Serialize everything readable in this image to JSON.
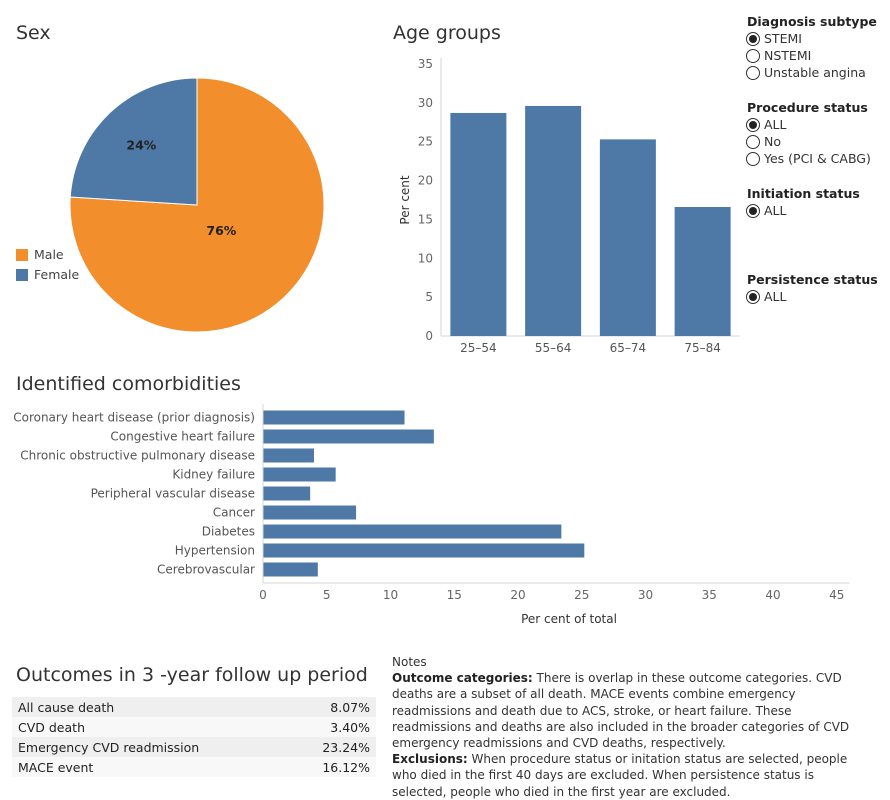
{
  "sex": {
    "title": "Sex",
    "legend": [
      {
        "label": "Male",
        "color": "#f28e2b"
      },
      {
        "label": "Female",
        "color": "#4e79a7"
      }
    ]
  },
  "age": {
    "title": "Age groups"
  },
  "comorb": {
    "title": "Identified comorbidities"
  },
  "filters": {
    "diagnosis": {
      "title": "Diagnosis subtype",
      "options": [
        "STEMI",
        "NSTEMI",
        "Unstable angina"
      ],
      "selected": "STEMI"
    },
    "procedure": {
      "title": "Procedure status",
      "options": [
        "ALL",
        "No",
        "Yes (PCI & CABG)"
      ],
      "selected": "ALL"
    },
    "initiation": {
      "title": "Initiation status",
      "options": [
        "ALL"
      ],
      "selected": "ALL"
    },
    "persistence": {
      "title": "Persistence status",
      "options": [
        "ALL"
      ],
      "selected": "ALL"
    }
  },
  "outcomes": {
    "title": "Outcomes in 3 -year follow up period",
    "rows": [
      {
        "label": "All cause death",
        "value": "8.07%"
      },
      {
        "label": "CVD death",
        "value": "3.40%"
      },
      {
        "label": "Emergency CVD readmission",
        "value": "23.24%"
      },
      {
        "label": "MACE event",
        "value": "16.12%"
      }
    ]
  },
  "notes": {
    "title": "Notes",
    "outcome_label": "Outcome categories:",
    "outcome_text": " There is overlap in these outcome categories. CVD deaths are a subset of all death. MACE events combine emergency readmissions and death due to ACS, stroke, or heart failure. These readmissions and deaths are also included in the broader categories of CVD emergency readmissions and CVD deaths, respectively.",
    "exclusion_label": "Exclusions:",
    "exclusion_text": " When procedure status or initation status are selected, people who died in the first 40 days are excluded. When persistence status is selected, people who died in the first year are excluded."
  },
  "chart_data": [
    {
      "type": "pie",
      "title": "Sex",
      "categories": [
        "Male",
        "Female"
      ],
      "values": [
        76,
        24
      ],
      "labels": [
        "76%",
        "24%"
      ],
      "colors": [
        "#f28e2b",
        "#4e79a7"
      ],
      "legend": "left"
    },
    {
      "type": "bar",
      "title": "Age groups",
      "categories": [
        "25–54",
        "55–64",
        "65–74",
        "75–84"
      ],
      "values": [
        28.7,
        29.6,
        25.3,
        16.6
      ],
      "ylabel": "Per cent",
      "ylim": [
        0,
        35
      ],
      "yticks": [
        0,
        5,
        10,
        15,
        20,
        25,
        30,
        35
      ],
      "color": "#4e79a7",
      "grid": false
    },
    {
      "type": "bar",
      "orientation": "horizontal",
      "title": "Identified comorbidities",
      "categories": [
        "Coronary heart disease (prior diagnosis)",
        "Congestive heart failure",
        "Chronic obstructive pulmonary disease",
        "Kidney failure",
        "Peripheral vascular disease",
        "Cancer",
        "Diabetes",
        "Hypertension",
        "Cerebrovascular"
      ],
      "values": [
        11.1,
        13.4,
        4.0,
        5.7,
        3.7,
        7.3,
        23.4,
        25.2,
        4.3
      ],
      "xlabel": "Per cent of total",
      "xlim": [
        0,
        46
      ],
      "xticks": [
        0,
        5,
        10,
        15,
        20,
        25,
        30,
        35,
        40,
        45
      ],
      "color": "#4e79a7",
      "grid": false
    }
  ]
}
